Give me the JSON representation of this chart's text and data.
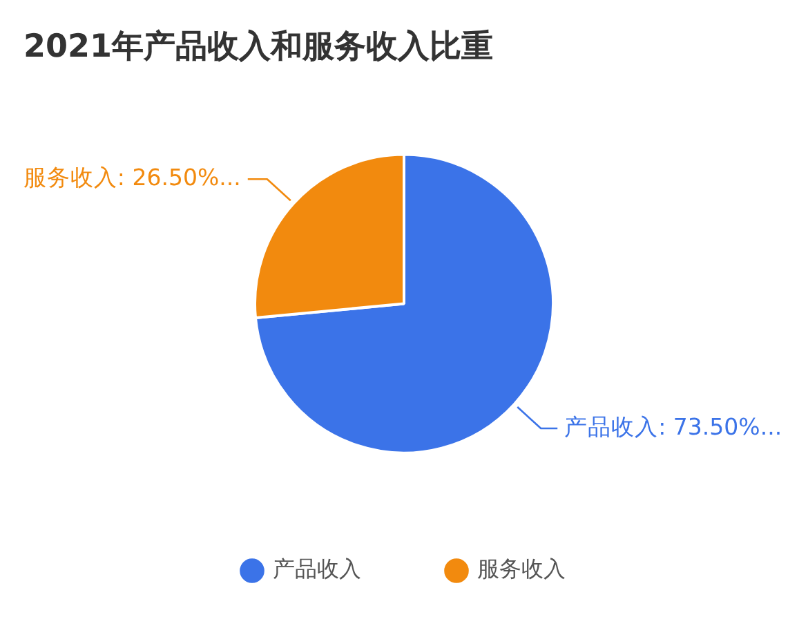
{
  "chart_data": {
    "type": "pie",
    "title": "2021年产品收入和服务收入比重",
    "categories": [
      "产品收入",
      "服务收入"
    ],
    "values": [
      73.5,
      26.5
    ],
    "colors": [
      "#3b73e8",
      "#f28a0e"
    ],
    "value_labels": [
      "产品收入: 73.50%...",
      "服务收入: 26.50%..."
    ],
    "legend": "bottom"
  }
}
